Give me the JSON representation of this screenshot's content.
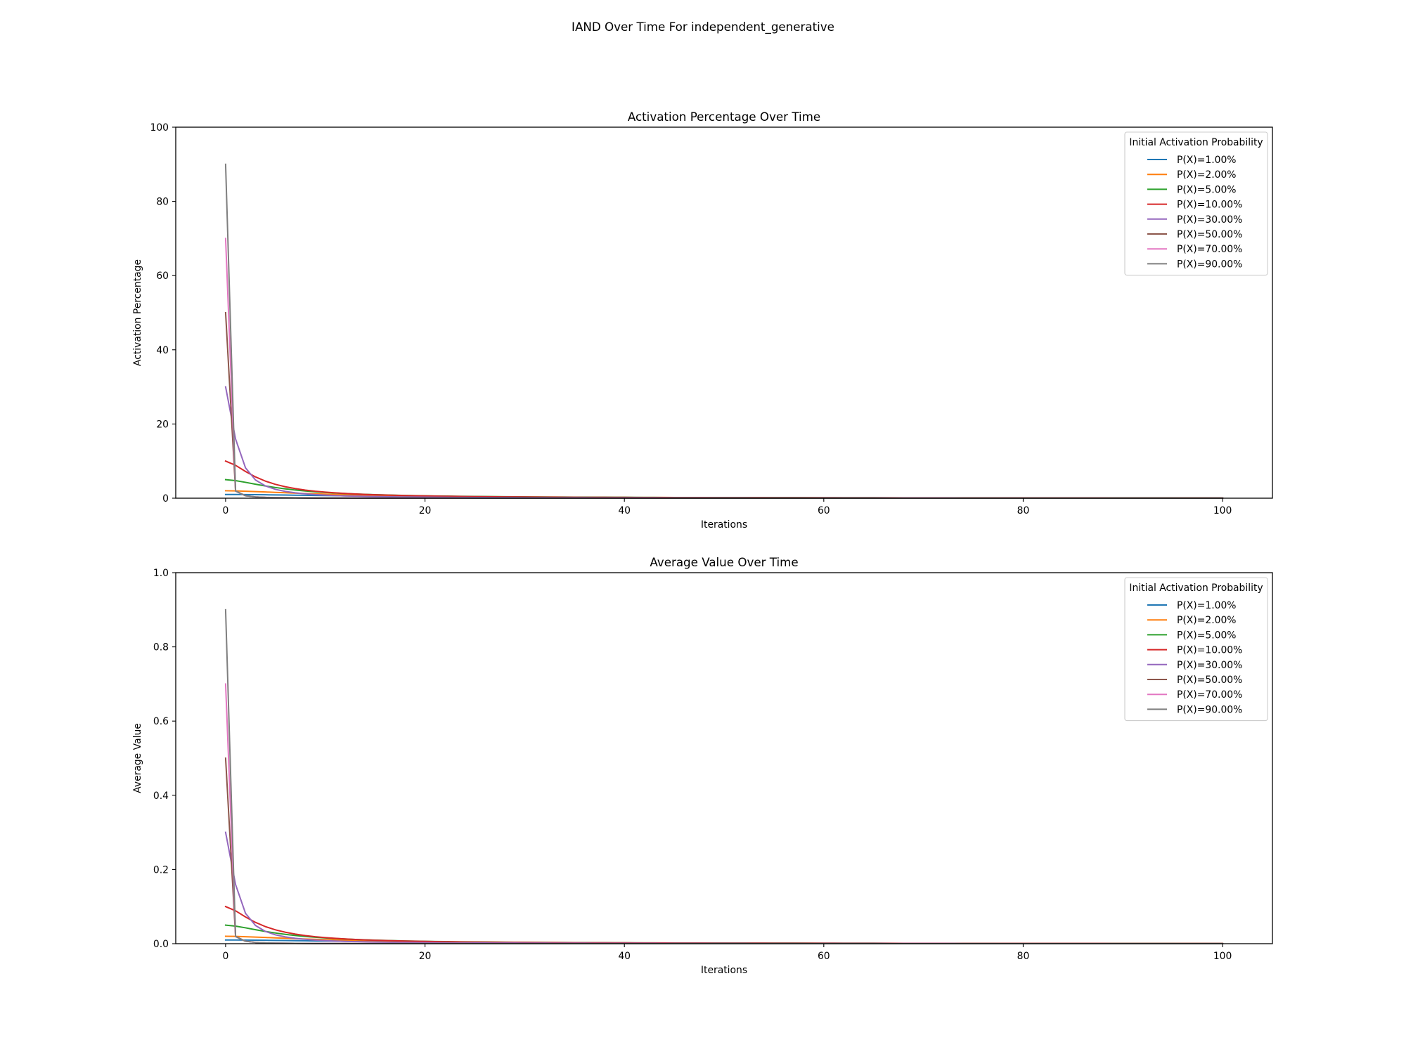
{
  "figure": {
    "title": "IAND Over Time For independent_generative"
  },
  "chart_data": [
    {
      "type": "line",
      "title": "Activation Percentage Over Time",
      "xlabel": "Iterations",
      "ylabel": "Activation Percentage",
      "xlim": [
        -5,
        105
      ],
      "ylim": [
        0,
        100
      ],
      "xticks": [
        0,
        20,
        40,
        60,
        80,
        100
      ],
      "yticks": [
        0,
        20,
        40,
        60,
        80,
        100
      ],
      "xtick_labels": [
        "0",
        "20",
        "40",
        "60",
        "80",
        "100"
      ],
      "ytick_labels": [
        "0",
        "20",
        "40",
        "60",
        "80",
        "100"
      ],
      "legend": {
        "title": "Initial Activation Probability",
        "placement": "top-right"
      },
      "scale": 100,
      "series": [
        {
          "name": "P(X)=1.00%",
          "color": "#1f77b4",
          "p": 0.01
        },
        {
          "name": "P(X)=2.00%",
          "color": "#ff7f0e",
          "p": 0.02
        },
        {
          "name": "P(X)=5.00%",
          "color": "#2ca02c",
          "p": 0.05
        },
        {
          "name": "P(X)=10.00%",
          "color": "#d62728",
          "p": 0.1
        },
        {
          "name": "P(X)=30.00%",
          "color": "#9467bd",
          "p": 0.3
        },
        {
          "name": "P(X)=50.00%",
          "color": "#8c564b",
          "p": 0.5
        },
        {
          "name": "P(X)=70.00%",
          "color": "#e377c2",
          "p": 0.7
        },
        {
          "name": "P(X)=90.00%",
          "color": "#7f7f7f",
          "p": 0.9
        }
      ]
    },
    {
      "type": "line",
      "title": "Average Value Over Time",
      "xlabel": "Iterations",
      "ylabel": "Average Value",
      "xlim": [
        -5,
        105
      ],
      "ylim": [
        0,
        1
      ],
      "xticks": [
        0,
        20,
        40,
        60,
        80,
        100
      ],
      "yticks": [
        0,
        0.2,
        0.4,
        0.6,
        0.8,
        1.0
      ],
      "xtick_labels": [
        "0",
        "20",
        "40",
        "60",
        "80",
        "100"
      ],
      "ytick_labels": [
        "0.0",
        "0.2",
        "0.4",
        "0.6",
        "0.8",
        "1.0"
      ],
      "legend": {
        "title": "Initial Activation Probability",
        "placement": "top-right"
      },
      "scale": 1,
      "series": [
        {
          "name": "P(X)=1.00%",
          "color": "#1f77b4",
          "p": 0.01
        },
        {
          "name": "P(X)=2.00%",
          "color": "#ff7f0e",
          "p": 0.02
        },
        {
          "name": "P(X)=5.00%",
          "color": "#2ca02c",
          "p": 0.05
        },
        {
          "name": "P(X)=10.00%",
          "color": "#d62728",
          "p": 0.1
        },
        {
          "name": "P(X)=30.00%",
          "color": "#9467bd",
          "p": 0.3
        },
        {
          "name": "P(X)=50.00%",
          "color": "#8c564b",
          "p": 0.5
        },
        {
          "name": "P(X)=70.00%",
          "color": "#e377c2",
          "p": 0.7
        },
        {
          "name": "P(X)=90.00%",
          "color": "#7f7f7f",
          "p": 0.9
        }
      ]
    }
  ]
}
